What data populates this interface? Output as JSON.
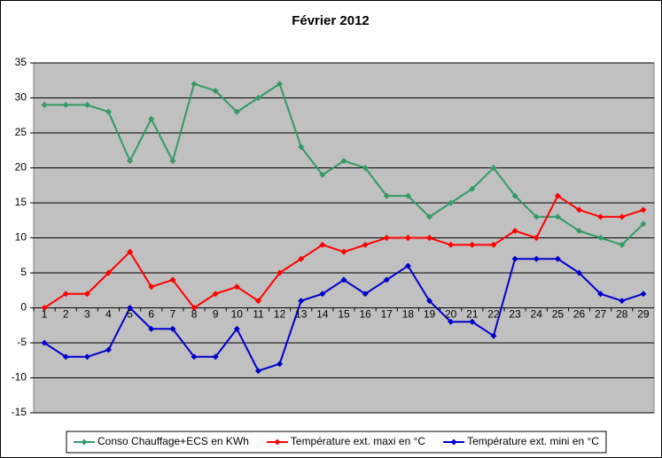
{
  "chart_data": {
    "type": "line",
    "title": "Février 2012",
    "categories": [
      "1",
      "2",
      "3",
      "4",
      "5",
      "6",
      "7",
      "8",
      "9",
      "10",
      "11",
      "12",
      "13",
      "14",
      "15",
      "16",
      "17",
      "18",
      "19",
      "20",
      "21",
      "22",
      "23",
      "24",
      "25",
      "26",
      "27",
      "28",
      "29"
    ],
    "series": [
      {
        "name": "Conso Chauffage+ECS en KWh",
        "color": "#339966",
        "values": [
          29,
          29,
          29,
          28,
          21,
          27,
          21,
          32,
          31,
          28,
          30,
          32,
          23,
          19,
          21,
          20,
          16,
          16,
          13,
          15,
          17,
          20,
          16,
          13,
          13,
          11,
          10,
          9,
          12
        ]
      },
      {
        "name": "Température ext. maxi en °C",
        "color": "#ff0000",
        "values": [
          0,
          2,
          2,
          5,
          8,
          3,
          4,
          0,
          2,
          3,
          1,
          5,
          7,
          9,
          8,
          9,
          10,
          10,
          10,
          9,
          9,
          9,
          11,
          10,
          16,
          14,
          13,
          13,
          14
        ]
      },
      {
        "name": "Température ext. mini en °C",
        "color": "#0000cc",
        "values": [
          -5,
          -7,
          -7,
          -6,
          0,
          -3,
          -3,
          -7,
          -7,
          -3,
          -9,
          -8,
          1,
          2,
          4,
          2,
          4,
          6,
          1,
          -2,
          -2,
          -4,
          7,
          7,
          7,
          5,
          2,
          1,
          2
        ]
      }
    ],
    "ylim": [
      -15,
      35
    ],
    "yticks": [
      -15,
      -10,
      -5,
      0,
      5,
      10,
      15,
      20,
      25,
      30,
      35
    ],
    "grid": true,
    "legend": "bottom"
  }
}
